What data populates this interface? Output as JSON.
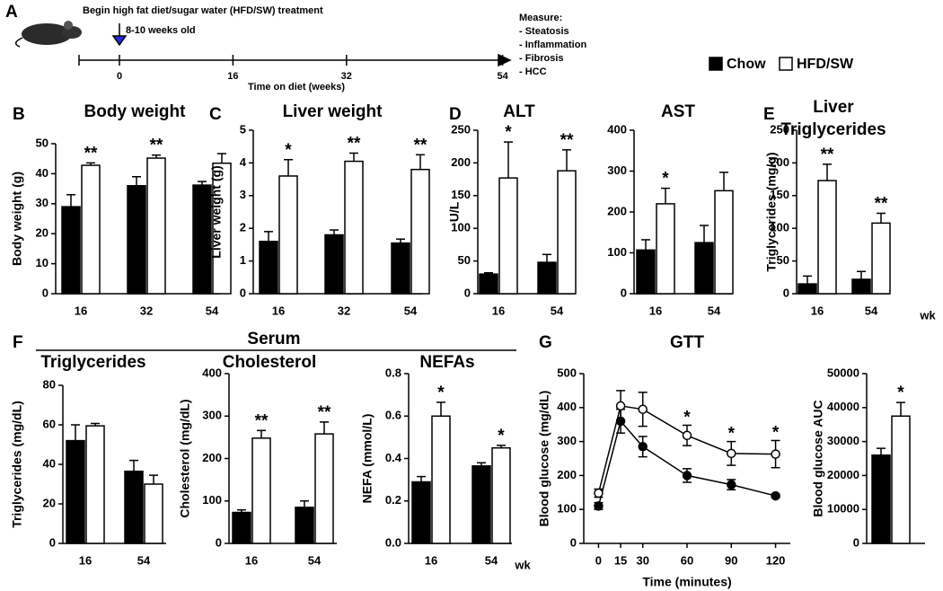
{
  "timeline": {
    "label": "A",
    "start_text": "Begin high fat diet/sugar water (HFD/SW) treatment",
    "age_text": "8-10 weeks old",
    "ticks": [
      0,
      16,
      32,
      54
    ],
    "axis_label": "Time on diet (weeks)",
    "measure_title": "Measure:",
    "measures": [
      "- Steatosis",
      "- Inflammation",
      "- Fibrosis",
      "- HCC"
    ]
  },
  "serum_label": "Serum",
  "chart_data": [
    {
      "type": "bar",
      "panel": "B",
      "title": "Body weight",
      "ylabel": "Body weight (g)",
      "categories": [
        "16",
        "32",
        "54"
      ],
      "series": [
        {
          "name": "Chow",
          "color": "#000000",
          "values": [
            29,
            36,
            36.2
          ],
          "errors": [
            4,
            3,
            1.2
          ]
        },
        {
          "name": "HFD/SW",
          "color": "#ffffff",
          "values": [
            42.8,
            45.2,
            43.5
          ],
          "errors": [
            0.8,
            1,
            3.2
          ],
          "significance": [
            "**",
            "**",
            null
          ]
        }
      ],
      "ylim": [
        0,
        50
      ],
      "yticks": [
        0,
        10,
        20,
        30,
        40,
        50
      ]
    },
    {
      "type": "bar",
      "panel": "C",
      "title": "Liver weight",
      "ylabel": "Liver weight (g)",
      "categories": [
        "16",
        "32",
        "54"
      ],
      "series": [
        {
          "color": "#000000",
          "values": [
            1.6,
            1.8,
            1.55
          ],
          "errors": [
            0.3,
            0.15,
            0.12
          ]
        },
        {
          "color": "#ffffff",
          "values": [
            3.6,
            4.05,
            3.8
          ],
          "errors": [
            0.5,
            0.25,
            0.45
          ],
          "significance": [
            "*",
            "**",
            "**"
          ]
        }
      ],
      "ylim": [
        0,
        5
      ],
      "yticks": [
        0,
        1,
        2,
        3,
        4,
        5
      ]
    },
    {
      "type": "bar",
      "panel": "D",
      "title": "ALT",
      "ylabel": "U/L",
      "categories": [
        "16",
        "54"
      ],
      "series": [
        {
          "color": "#000000",
          "values": [
            30,
            48
          ],
          "errors": [
            2,
            12
          ]
        },
        {
          "color": "#ffffff",
          "values": [
            177,
            188
          ],
          "errors": [
            55,
            32
          ],
          "significance": [
            "*",
            "**"
          ]
        }
      ],
      "ylim": [
        0,
        250
      ],
      "yticks": [
        0,
        50,
        100,
        150,
        200,
        250
      ]
    },
    {
      "type": "bar",
      "title": "AST",
      "categories": [
        "16",
        "54"
      ],
      "series": [
        {
          "color": "#000000",
          "values": [
            107,
            125
          ],
          "errors": [
            25,
            42
          ]
        },
        {
          "color": "#ffffff",
          "values": [
            220,
            252
          ],
          "errors": [
            38,
            45
          ],
          "significance": [
            "*",
            null
          ]
        }
      ],
      "ylim": [
        0,
        400
      ],
      "yticks": [
        0,
        100,
        200,
        300,
        400
      ]
    },
    {
      "type": "bar",
      "panel": "E",
      "title": [
        "Liver",
        "Triglycerides"
      ],
      "ylabel": "Triglycerides (mg/g)",
      "x_unit": "wk",
      "categories": [
        "16",
        "54"
      ],
      "series": [
        {
          "color": "#000000",
          "values": [
            15,
            22
          ],
          "errors": [
            12,
            12
          ]
        },
        {
          "color": "#ffffff",
          "values": [
            173,
            108
          ],
          "errors": [
            25,
            15
          ],
          "significance": [
            "**",
            "**"
          ]
        }
      ],
      "ylim": [
        0,
        250
      ],
      "yticks": [
        0,
        50,
        100,
        150,
        200,
        250
      ]
    },
    {
      "type": "bar",
      "panel": "F",
      "title": "Triglycerides",
      "ylabel": "Triglycerides (mg/dL)",
      "categories": [
        "16",
        "54"
      ],
      "series": [
        {
          "color": "#000000",
          "values": [
            52,
            36.5
          ],
          "errors": [
            8,
            5.5
          ]
        },
        {
          "color": "#ffffff",
          "values": [
            59.5,
            30
          ],
          "errors": [
            1.2,
            4.5
          ]
        }
      ],
      "ylim": [
        0,
        80
      ],
      "yticks": [
        0,
        20,
        40,
        60,
        80
      ]
    },
    {
      "type": "bar",
      "title": "Cholesterol",
      "ylabel": "Cholesterol (mg/dL)",
      "categories": [
        "16",
        "54"
      ],
      "series": [
        {
          "color": "#000000",
          "values": [
            73,
            85
          ],
          "errors": [
            6,
            15
          ]
        },
        {
          "color": "#ffffff",
          "values": [
            248,
            258
          ],
          "errors": [
            18,
            28
          ],
          "significance": [
            "**",
            "**"
          ]
        }
      ],
      "ylim": [
        0,
        400
      ],
      "yticks": [
        0,
        100,
        200,
        300,
        400
      ]
    },
    {
      "type": "bar",
      "title": "NEFAs",
      "ylabel": "NEFA (mmol/L)",
      "x_unit": "wk",
      "categories": [
        "16",
        "54"
      ],
      "series": [
        {
          "color": "#000000",
          "values": [
            0.29,
            0.365
          ],
          "errors": [
            0.025,
            0.015
          ]
        },
        {
          "color": "#ffffff",
          "values": [
            0.6,
            0.45
          ],
          "errors": [
            0.065,
            0.012
          ],
          "significance": [
            "*",
            "*"
          ]
        }
      ],
      "ylim": [
        0,
        0.8
      ],
      "yticks": [
        {
          "value": 0,
          "label": "0.0"
        },
        0.2,
        0.4,
        0.6,
        0.8
      ]
    },
    {
      "type": "line",
      "panel": "G",
      "title": "GTT",
      "ylabel": "Blood glucose (mg/dL)",
      "xlabel": "Time (minutes)",
      "x": [
        0,
        15,
        30,
        60,
        90,
        120
      ],
      "series": [
        {
          "color": "#000000",
          "values": [
            110,
            360,
            285,
            200,
            173,
            140
          ],
          "errors": [
            10,
            35,
            30,
            20,
            15,
            5
          ]
        },
        {
          "color": "#ffffff",
          "values": [
            148,
            405,
            395,
            318,
            265,
            263
          ],
          "errors": [
            12,
            45,
            50,
            30,
            35,
            40
          ],
          "significance": [
            null,
            null,
            null,
            "*",
            "*",
            "*"
          ]
        }
      ],
      "xlim": [
        -10,
        130
      ],
      "xticks": [
        0,
        15,
        30,
        60,
        90,
        120
      ],
      "ylim": [
        0,
        500
      ],
      "yticks": [
        0,
        100,
        200,
        300,
        400,
        500
      ]
    },
    {
      "type": "bar",
      "ylabel": "Blood glucose AUC",
      "categories": [
        null
      ],
      "series": [
        {
          "color": "#000000",
          "values": [
            26000
          ],
          "errors": [
            2000
          ]
        },
        {
          "color": "#ffffff",
          "values": [
            37500
          ],
          "errors": [
            4000
          ],
          "significance": [
            "*"
          ]
        }
      ],
      "ylim": [
        0,
        50000
      ],
      "yticks": [
        0,
        10000,
        20000,
        30000,
        40000,
        50000
      ]
    }
  ]
}
